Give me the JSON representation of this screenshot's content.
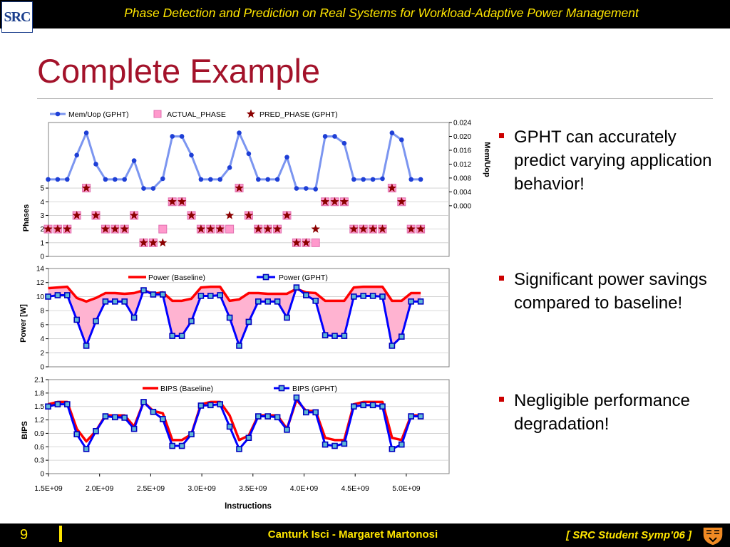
{
  "header": {
    "logo_text": "SRC",
    "title": "Phase Detection and Prediction on Real Systems for Workload-Adaptive Power Management"
  },
  "slide": {
    "title": "Complete Example"
  },
  "bullets": [
    "GPHT can accurately predict varying application behavior!",
    "Significant power savings compared to baseline!",
    "Negligible performance degradation!"
  ],
  "footer": {
    "page": "9",
    "authors": "Canturk Isci - Margaret Martonosi",
    "venue": "[ SRC Student Symp’06 ]"
  },
  "colors": {
    "header_bg": "#000000",
    "header_text": "#ffe600",
    "title": "#a3122a",
    "bullet_marker": "#cc0000",
    "mem_line": "#7b95f0",
    "actual_phase": "#ff99cc",
    "pred_phase": "#8b0000",
    "baseline": "#ff0000",
    "gpht": "#0000ff",
    "savings_fill": "#ffb3d1",
    "plot_bg": "#ffffff",
    "grid": "#cccccc"
  },
  "chart_data": [
    {
      "type": "line",
      "panel": "phases",
      "legend": [
        "Mem/Uop (GPHT)",
        "ACTUAL_PHASE",
        "PRED_PHASE (GPHT)"
      ],
      "y_left": {
        "label": "Phases",
        "ticks": [
          "0",
          "1",
          "2",
          "3",
          "4",
          "5"
        ],
        "ylim": [
          0,
          9.8
        ]
      },
      "y_right": {
        "label": "Mem/Uop",
        "ticks": [
          "0.000",
          "0.004",
          "0.008",
          "0.012",
          "0.016",
          "0.020",
          "0.024"
        ],
        "ylim": [
          -0.0146,
          0.024
        ]
      },
      "grid": true,
      "series": [
        {
          "name": "Mem/Uop (GPHT)",
          "values": [
            0.0076,
            0.0076,
            0.0076,
            0.0146,
            0.021,
            0.012,
            0.0076,
            0.0076,
            0.0076,
            0.013,
            0.005,
            0.005,
            0.0078,
            0.02,
            0.02,
            0.0146,
            0.0076,
            0.0076,
            0.0076,
            0.011,
            0.021,
            0.015,
            0.0076,
            0.0076,
            0.0076,
            0.014,
            0.005,
            0.005,
            0.0048,
            0.02,
            0.02,
            0.018,
            0.0076,
            0.0076,
            0.0076,
            0.0078,
            0.021,
            0.019,
            0.0076,
            0.0076
          ]
        },
        {
          "name": "ACTUAL_PHASE",
          "values": [
            2,
            2,
            2,
            3,
            5,
            3,
            2,
            2,
            2,
            3,
            1,
            1,
            2,
            4,
            4,
            3,
            2,
            2,
            2,
            2,
            5,
            3,
            2,
            2,
            2,
            3,
            1,
            1,
            1,
            4,
            4,
            4,
            2,
            2,
            2,
            2,
            5,
            4,
            2,
            2
          ]
        },
        {
          "name": "PRED_PHASE (GPHT)",
          "values": [
            2,
            2,
            2,
            3,
            5,
            3,
            2,
            2,
            2,
            3,
            1,
            1,
            1,
            4,
            4,
            3,
            2,
            2,
            2,
            3,
            5,
            3,
            2,
            2,
            2,
            3,
            1,
            1,
            2,
            4,
            4,
            4,
            2,
            2,
            2,
            2,
            5,
            4,
            2,
            2
          ]
        }
      ]
    },
    {
      "type": "area",
      "panel": "power",
      "legend": [
        "Power (Baseline)",
        "Power (GPHT)"
      ],
      "y": {
        "label": "Power [W]",
        "ticks": [
          "0",
          "2",
          "4",
          "6",
          "8",
          "10",
          "12",
          "14"
        ],
        "ylim": [
          0,
          14
        ]
      },
      "grid": true,
      "series": [
        {
          "name": "Power (Baseline)",
          "values": [
            11.2,
            11.3,
            11.4,
            9.8,
            9.3,
            9.8,
            10.5,
            10.5,
            10.4,
            10.5,
            10.9,
            10.4,
            10.6,
            9.4,
            9.4,
            9.7,
            11.3,
            11.4,
            11.4,
            9.4,
            9.6,
            10.5,
            10.5,
            10.4,
            10.4,
            10.4,
            11.1,
            10.6,
            10.5,
            9.4,
            9.4,
            9.4,
            11.3,
            11.4,
            11.4,
            11.4,
            9.4,
            9.4,
            10.5,
            10.5
          ]
        },
        {
          "name": "Power (GPHT)",
          "values": [
            10.0,
            10.2,
            10.2,
            6.7,
            3.0,
            6.5,
            9.3,
            9.3,
            9.3,
            7.0,
            10.9,
            10.3,
            10.3,
            4.4,
            4.4,
            6.5,
            10.1,
            10.1,
            10.2,
            7.0,
            3.0,
            6.4,
            9.3,
            9.3,
            9.3,
            7.0,
            11.3,
            10.2,
            9.4,
            4.5,
            4.4,
            4.4,
            10.0,
            10.1,
            10.1,
            10.0,
            3.0,
            4.3,
            9.3,
            9.3
          ]
        }
      ]
    },
    {
      "type": "line",
      "panel": "bips",
      "legend": [
        "BIPS (Baseline)",
        "BIPS (GPHT)"
      ],
      "y": {
        "label": "BIPS",
        "ticks": [
          "0",
          "0.3",
          "0.6",
          "0.9",
          "1.2",
          "1.5",
          "1.8",
          "2.1"
        ],
        "ylim": [
          0,
          2.1
        ]
      },
      "x": {
        "label": "Instructions",
        "ticks": [
          "1.5E+09",
          "2.0E+09",
          "2.5E+09",
          "3.0E+09",
          "3.5E+09",
          "4.0E+09",
          "4.5E+09",
          "5.0E+09"
        ]
      },
      "grid": true,
      "series": [
        {
          "name": "BIPS (Baseline)",
          "values": [
            1.55,
            1.6,
            1.6,
            1.0,
            0.72,
            0.95,
            1.3,
            1.3,
            1.3,
            1.05,
            1.6,
            1.4,
            1.35,
            0.75,
            0.75,
            0.88,
            1.55,
            1.6,
            1.6,
            1.3,
            0.75,
            0.85,
            1.3,
            1.3,
            1.3,
            1.0,
            1.65,
            1.4,
            1.4,
            0.8,
            0.75,
            0.75,
            1.55,
            1.6,
            1.6,
            1.6,
            0.8,
            0.75,
            1.3,
            1.3
          ]
        },
        {
          "name": "BIPS (GPHT)",
          "values": [
            1.5,
            1.55,
            1.55,
            0.88,
            0.55,
            0.95,
            1.28,
            1.26,
            1.25,
            1.0,
            1.6,
            1.38,
            1.22,
            0.62,
            0.62,
            0.88,
            1.52,
            1.53,
            1.55,
            1.05,
            0.55,
            0.8,
            1.28,
            1.28,
            1.26,
            0.98,
            1.7,
            1.37,
            1.37,
            0.65,
            0.62,
            0.67,
            1.5,
            1.53,
            1.53,
            1.5,
            0.55,
            0.65,
            1.28,
            1.28
          ]
        }
      ]
    }
  ]
}
